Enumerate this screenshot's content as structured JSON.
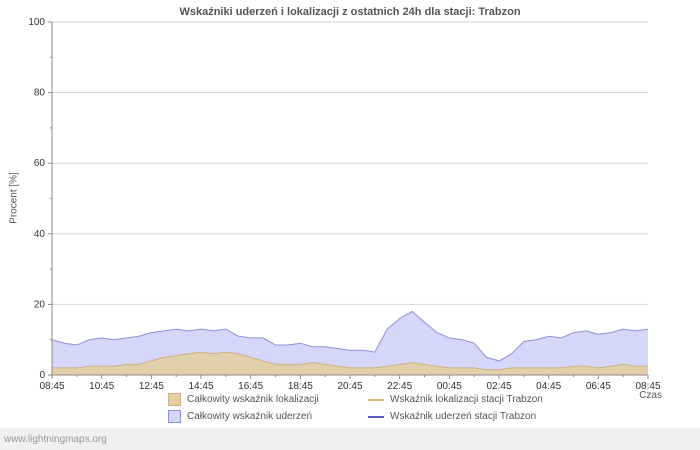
{
  "page": {
    "watermark": "www.lightningmaps.org"
  },
  "chart_data": {
    "type": "area",
    "title": "Wskaźniki uderzeń i lokalizacji z ostatnich 24h dla stacji: Trabzon",
    "ylabel": "Procent  [%]",
    "xlabel": "Czas",
    "ylim": [
      0,
      100
    ],
    "y_ticks": [
      0,
      20,
      40,
      60,
      80,
      100
    ],
    "x_tick_labels": [
      "08:45",
      "10:45",
      "12:45",
      "14:45",
      "16:45",
      "18:45",
      "20:45",
      "22:45",
      "00:45",
      "02:45",
      "04:45",
      "06:45",
      "08:45"
    ],
    "grid": true,
    "legend_position": "bottom",
    "series": [
      {
        "name": "Całkowity wskaźnik lokalizacji",
        "type": "area",
        "fill": "#e3cfa3",
        "opacity": 0.9,
        "stroke": "#cdb183",
        "values": [
          2,
          2,
          2,
          2.5,
          2.5,
          2.5,
          3,
          3,
          4,
          5,
          5.5,
          6,
          6.5,
          6,
          6.5,
          6,
          5,
          4,
          3,
          3,
          3,
          3.5,
          3,
          2.5,
          2,
          2,
          2,
          2.5,
          3,
          3.5,
          3,
          2.5,
          2,
          2,
          2,
          1.5,
          1.5,
          2,
          2,
          2,
          2,
          2,
          2.5,
          2.5,
          2,
          2.5,
          3,
          2.5,
          2.5
        ]
      },
      {
        "name": "Całkowity wskaźnik uderzeń",
        "type": "area",
        "fill": "#d6d6f8",
        "opacity": 1,
        "stroke": "#8f8fd9",
        "values": [
          10,
          9,
          8.5,
          10,
          10.5,
          10,
          10.5,
          11,
          12,
          12.5,
          13,
          12.5,
          13,
          12.5,
          13,
          11,
          10.5,
          10.5,
          8.5,
          8.5,
          9,
          8,
          8,
          7.5,
          7,
          7,
          6.5,
          13,
          16,
          18,
          15,
          12,
          10.5,
          10,
          9,
          5,
          4,
          6,
          9.5,
          10,
          11,
          10.5,
          12,
          12.5,
          11.5,
          12,
          13,
          12.5,
          13
        ]
      },
      {
        "name": "Wskaźnik lokalizacji stacji Trabzon",
        "type": "line",
        "stroke": "#e2bc7c",
        "values": [
          0,
          0,
          0,
          0,
          0,
          0,
          0,
          0,
          0,
          0,
          0,
          0,
          0,
          0,
          0,
          0,
          0,
          0,
          0,
          0,
          0,
          0,
          0,
          0,
          0,
          0,
          0,
          0,
          0,
          0,
          0,
          0,
          0,
          0,
          0,
          0,
          0,
          0,
          0,
          0,
          0,
          0,
          0,
          0,
          0,
          0,
          0,
          0,
          0
        ]
      },
      {
        "name": "Wskaźnik uderzeń stacji Trabzon",
        "type": "line",
        "stroke": "#5c5cc0",
        "values": [
          0,
          0,
          0,
          0,
          0,
          0,
          0,
          0,
          0,
          0,
          0,
          0,
          0,
          0,
          0,
          0,
          0,
          0,
          0,
          0,
          0,
          0,
          0,
          0,
          0,
          0,
          0,
          0,
          0,
          0,
          0,
          0,
          0,
          0,
          0,
          0,
          0,
          0,
          0,
          0,
          0,
          0,
          0,
          0,
          0,
          0,
          0,
          0,
          0
        ]
      }
    ]
  }
}
